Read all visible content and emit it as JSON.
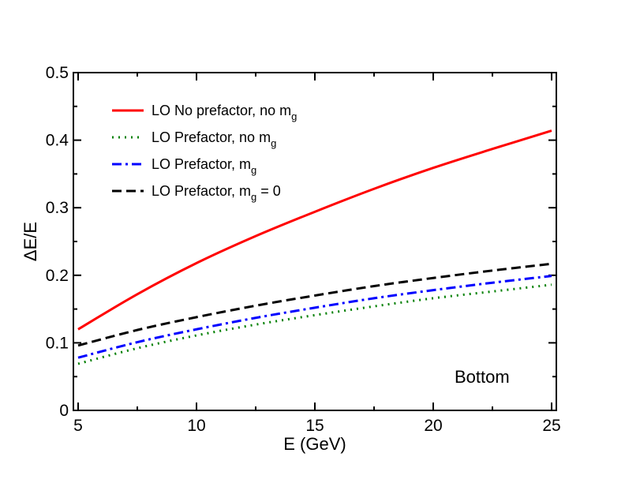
{
  "chart_data": {
    "type": "line",
    "xlabel": "E (GeV)",
    "ylabel": "ΔE/E",
    "xlim": [
      4.8,
      25.2
    ],
    "ylim": [
      0,
      0.5
    ],
    "xticks": [
      5,
      10,
      15,
      20,
      25
    ],
    "xtick_labels": [
      "5",
      "10",
      "15",
      "20",
      "25"
    ],
    "yticks": [
      0,
      0.1,
      0.2,
      0.3,
      0.4,
      0.5
    ],
    "ytick_labels": [
      "0",
      "0.1",
      "0.2",
      "0.3",
      "0.4",
      "0.5"
    ],
    "annotation": "Bottom",
    "legend_position": "top-left",
    "x": [
      5,
      7.5,
      10,
      12.5,
      15,
      17.5,
      20,
      22.5,
      25
    ],
    "series": [
      {
        "name": "LO No prefactor, no m",
        "name_sub": "g",
        "name_suffix": "",
        "color": "#ff0000",
        "style": "solid",
        "values": [
          0.12,
          0.172,
          0.218,
          0.258,
          0.294,
          0.328,
          0.359,
          0.387,
          0.414
        ]
      },
      {
        "name": "LO Prefactor, no m",
        "name_sub": "g",
        "name_suffix": "",
        "color": "#008000",
        "style": "dotted",
        "values": [
          0.069,
          0.092,
          0.111,
          0.127,
          0.141,
          0.154,
          0.166,
          0.176,
          0.186
        ]
      },
      {
        "name": "LO Prefactor, m",
        "name_sub": "g",
        "name_suffix": "",
        "color": "#0000ff",
        "style": "dashdot",
        "values": [
          0.078,
          0.101,
          0.12,
          0.137,
          0.152,
          0.166,
          0.178,
          0.189,
          0.199
        ]
      },
      {
        "name": "LO Prefactor, m",
        "name_sub": "g",
        "name_suffix": " = 0",
        "color": "#000000",
        "style": "dashed",
        "values": [
          0.096,
          0.119,
          0.138,
          0.155,
          0.17,
          0.184,
          0.196,
          0.207,
          0.217
        ]
      }
    ]
  }
}
